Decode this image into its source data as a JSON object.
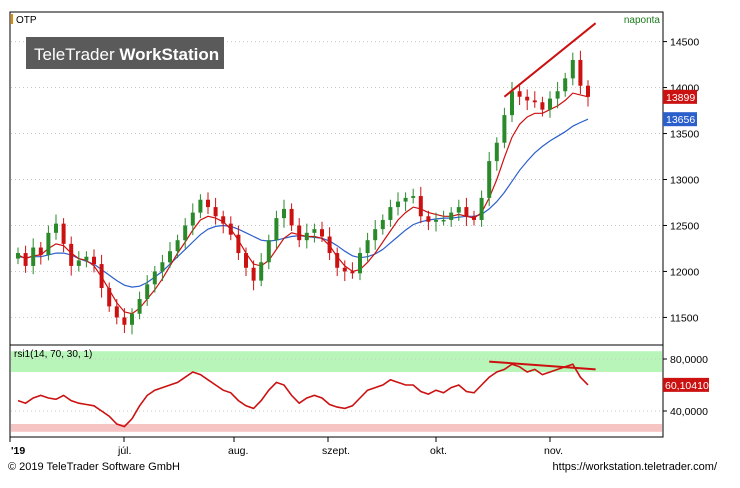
{
  "header": {
    "symbol": "OTP",
    "period": "naponta"
  },
  "watermark": {
    "brand_light": "TeleTrader ",
    "brand_bold": "WorkStation"
  },
  "colors": {
    "price_up": "#2a8a2a",
    "price_down": "#cc1111",
    "ma_fast": "#cc1111",
    "ma_slow": "#2a5fcc",
    "rsi_line": "#cc1111",
    "overbought_zone": "#b8f5b8",
    "oversold_zone": "#f7c4c4",
    "trend_line": "#cc1111"
  },
  "price_badges": {
    "last": "13899",
    "ma": "13656"
  },
  "rsi": {
    "label": "rsi1(14, 70, 30, 1)",
    "last_badge": "60,10410",
    "overbought": 70,
    "oversold": 30
  },
  "footer": {
    "copyright": "© 2019 TeleTrader Software GmbH",
    "url": "https://workstation.teletrader.com/"
  },
  "chart_data": [
    {
      "type": "candlestick",
      "title": "OTP",
      "ylim": [
        11200,
        14800
      ],
      "y_ticks": [
        "11500",
        "12000",
        "12500",
        "13000",
        "13500",
        "14000",
        "14500"
      ],
      "x_ticks": [
        "'19",
        "júl.",
        "aug.",
        "szept.",
        "okt.",
        "nov."
      ],
      "close_series": [
        12200,
        12060,
        12260,
        12180,
        12420,
        12520,
        12300,
        12060,
        12120,
        12160,
        12080,
        11820,
        11620,
        11500,
        11420,
        11540,
        11700,
        11860,
        12000,
        12100,
        12220,
        12340,
        12500,
        12640,
        12780,
        12700,
        12600,
        12520,
        12400,
        12200,
        12040,
        11900,
        12100,
        12340,
        12580,
        12680,
        12500,
        12340,
        12420,
        12460,
        12380,
        12200,
        12040,
        12000,
        11980,
        12200,
        12340,
        12460,
        12560,
        12700,
        12760,
        12800,
        12820,
        12600,
        12540,
        12560,
        12560,
        12640,
        12700,
        12600,
        12560,
        12800,
        13200,
        13400,
        13700,
        13960,
        13900,
        13860,
        13840,
        13760,
        13880,
        13960,
        14100,
        14300,
        14020,
        13899
      ],
      "ma_fast": [
        12180,
        12140,
        12170,
        12180,
        12250,
        12300,
        12280,
        12200,
        12140,
        12120,
        12060,
        11940,
        11800,
        11660,
        11560,
        11540,
        11600,
        11700,
        11800,
        11920,
        12060,
        12200,
        12320,
        12450,
        12560,
        12600,
        12580,
        12540,
        12460,
        12340,
        12200,
        12080,
        12060,
        12120,
        12240,
        12360,
        12420,
        12400,
        12380,
        12380,
        12360,
        12280,
        12160,
        12060,
        12000,
        12020,
        12100,
        12200,
        12320,
        12440,
        12560,
        12640,
        12700,
        12680,
        12640,
        12620,
        12600,
        12600,
        12620,
        12600,
        12580,
        12640,
        12800,
        13000,
        13240,
        13460,
        13600,
        13680,
        13720,
        13720,
        13760,
        13800,
        13860,
        13940,
        13920,
        13900
      ],
      "ma_slow": [
        12160,
        12150,
        12160,
        12160,
        12180,
        12200,
        12200,
        12180,
        12140,
        12110,
        12080,
        12020,
        11960,
        11900,
        11850,
        11830,
        11840,
        11880,
        11940,
        12000,
        12080,
        12160,
        12240,
        12320,
        12400,
        12460,
        12490,
        12500,
        12490,
        12460,
        12420,
        12380,
        12340,
        12330,
        12340,
        12360,
        12380,
        12390,
        12380,
        12370,
        12360,
        12330,
        12280,
        12220,
        12170,
        12150,
        12160,
        12190,
        12240,
        12310,
        12380,
        12450,
        12510,
        12540,
        12560,
        12570,
        12580,
        12580,
        12590,
        12600,
        12600,
        12620,
        12680,
        12760,
        12860,
        12980,
        13100,
        13200,
        13290,
        13360,
        13420,
        13470,
        13520,
        13580,
        13620,
        13656
      ],
      "last_price": 13899,
      "ma_last": 13656,
      "trend_line": [
        [
          64,
          13900
        ],
        [
          76,
          14700
        ]
      ]
    },
    {
      "type": "line",
      "title": "rsi1(14, 70, 30, 1)",
      "ylim": [
        20,
        90
      ],
      "y_ticks": [
        "40,0000",
        "80,0000"
      ],
      "values": [
        48,
        46,
        50,
        52,
        50,
        49,
        52,
        48,
        46,
        45,
        44,
        40,
        36,
        30,
        28,
        34,
        44,
        52,
        56,
        58,
        60,
        62,
        66,
        70,
        68,
        64,
        60,
        56,
        54,
        48,
        44,
        42,
        48,
        56,
        62,
        60,
        52,
        46,
        50,
        52,
        50,
        45,
        43,
        42,
        44,
        50,
        56,
        58,
        60,
        64,
        62,
        60,
        60,
        55,
        53,
        56,
        54,
        58,
        60,
        55,
        54,
        60,
        66,
        70,
        72,
        76,
        74,
        70,
        72,
        68,
        70,
        72,
        74,
        76,
        66,
        60.1041
      ],
      "last_value": 60.1041,
      "overbought": 70,
      "oversold": 30,
      "trend_line": [
        [
          62,
          78
        ],
        [
          76,
          72
        ]
      ]
    }
  ]
}
